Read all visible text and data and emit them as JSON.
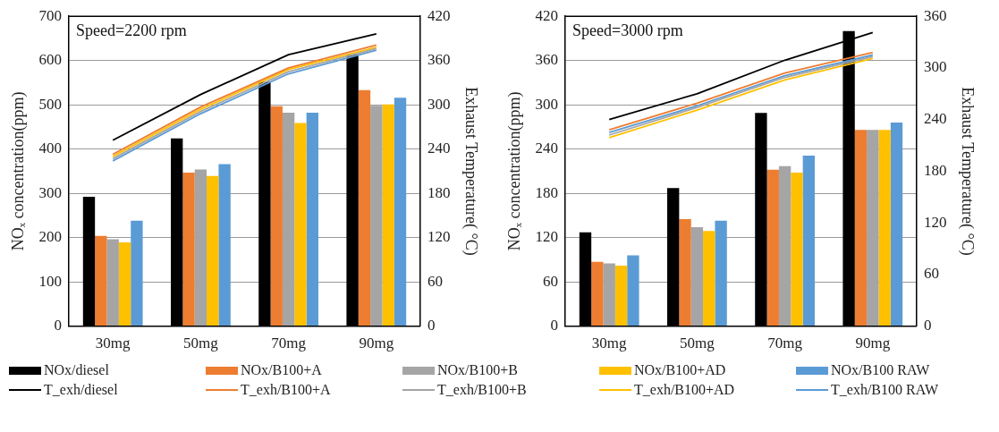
{
  "chart_data": [
    {
      "type": "bar",
      "categories": [
        "30mg",
        "50mg",
        "70mg",
        "90mg"
      ],
      "ylabel": "NOₓ concentration(ppm)",
      "y2label": "Exhaust Temperature( °C)",
      "ylim": [
        0,
        700
      ],
      "yticks": [
        0,
        100,
        200,
        300,
        400,
        500,
        600,
        700
      ],
      "y2lim": [
        0,
        420
      ],
      "y2ticks": [
        0,
        60,
        120,
        180,
        240,
        300,
        360,
        420
      ],
      "grid": "y",
      "legend": "bottom",
      "marker": "none",
      "line_style": "solid",
      "annotations": [
        "Speed=2200 rpm"
      ],
      "series": [
        {
          "name": "NOx/diesel",
          "color": "#000000",
          "values": [
            292,
            424,
            552,
            614
          ]
        },
        {
          "name": "NOx/B100+A",
          "color": "#ed7d31",
          "values": [
            204,
            347,
            497,
            533
          ]
        },
        {
          "name": "NOx/B100+B",
          "color": "#a5a5a5",
          "values": [
            196,
            354,
            482,
            498
          ]
        },
        {
          "name": "NOx/B100+AD",
          "color": "#ffc000",
          "values": [
            189,
            339,
            459,
            501
          ]
        },
        {
          "name": "NOx/B100 RAW",
          "color": "#5b9bd5",
          "values": [
            238,
            366,
            482,
            516
          ]
        },
        {
          "name": "T_exh/diesel",
          "type": "line",
          "axis": "y2",
          "color": "#000000",
          "values": [
            252,
            314,
            368,
            396
          ]
        },
        {
          "name": "T_exh/B100+A",
          "type": "line",
          "axis": "y2",
          "color": "#ed7d31",
          "values": [
            233,
            297,
            350,
            381
          ]
        },
        {
          "name": "T_exh/B100+B",
          "type": "line",
          "axis": "y2",
          "color": "#a5a5a5",
          "values": [
            227,
            291,
            345,
            376
          ]
        },
        {
          "name": "T_exh/B100+AD",
          "type": "line",
          "axis": "y2",
          "color": "#ffc000",
          "values": [
            230,
            294,
            348,
            378
          ]
        },
        {
          "name": "T_exh/B100 RAW",
          "type": "line",
          "axis": "y2",
          "color": "#5b9bd5",
          "values": [
            224,
            288,
            342,
            374
          ]
        }
      ]
    },
    {
      "type": "bar",
      "categories": [
        "30mg",
        "50mg",
        "70mg",
        "90mg"
      ],
      "ylabel": "NOₓ concentration(ppm)",
      "y2label": "Exhaust Temperature( °C)",
      "ylim": [
        0,
        420
      ],
      "yticks": [
        0,
        60,
        120,
        180,
        240,
        300,
        360,
        420
      ],
      "y2lim": [
        0,
        360
      ],
      "y2ticks": [
        0,
        60,
        120,
        180,
        240,
        300,
        360
      ],
      "grid": "y",
      "marker": "none",
      "line_style": "solid",
      "annotations": [
        "Speed=3000 rpm"
      ],
      "series": [
        {
          "color": "#000000",
          "values": [
            127,
            187,
            289,
            400
          ]
        },
        {
          "color": "#ed7d31",
          "values": [
            87,
            145,
            212,
            266
          ]
        },
        {
          "color": "#a5a5a5",
          "values": [
            85,
            134,
            217,
            266
          ]
        },
        {
          "color": "#ffc000",
          "values": [
            82,
            129,
            208,
            266
          ]
        },
        {
          "color": "#5b9bd5",
          "values": [
            96,
            143,
            231,
            276
          ]
        },
        {
          "type": "line",
          "axis": "y2",
          "color": "#000000",
          "values": [
            240,
            270,
            309,
            341
          ]
        },
        {
          "type": "line",
          "axis": "y2",
          "color": "#ed7d31",
          "values": [
            228,
            259,
            294,
            318
          ]
        },
        {
          "type": "line",
          "axis": "y2",
          "color": "#a5a5a5",
          "values": [
            222,
            254,
            289,
            313
          ]
        },
        {
          "type": "line",
          "axis": "y2",
          "color": "#ffc000",
          "values": [
            219,
            251,
            286,
            311
          ]
        },
        {
          "type": "line",
          "axis": "y2",
          "color": "#5b9bd5",
          "values": [
            225,
            256,
            291,
            315
          ]
        }
      ]
    }
  ]
}
